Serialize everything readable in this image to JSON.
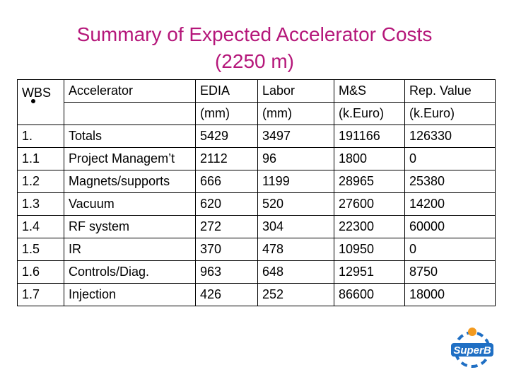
{
  "title": {
    "line1": "Summary of Expected Accelerator Costs",
    "line2": "(2250 m)"
  },
  "table": {
    "header1": [
      "WBS",
      "Accelerator",
      "EDIA",
      "Labor",
      "M&S",
      "Rep. Value"
    ],
    "header2": [
      "",
      "",
      "(mm)",
      "(mm)",
      "(k.Euro)",
      "(k.Euro)"
    ],
    "rows": [
      [
        "1.",
        "Totals",
        "5429",
        "3497",
        "191166",
        "126330"
      ],
      [
        "1.1",
        "Project Managem’t",
        "2112",
        "96",
        "1800",
        "0"
      ],
      [
        "1.2",
        "Magnets/supports",
        "666",
        "1199",
        "28965",
        "25380"
      ],
      [
        "1.3",
        "Vacuum",
        "620",
        "520",
        "27600",
        "14200"
      ],
      [
        "1.4",
        "RF system",
        "272",
        "304",
        "22300",
        "60000"
      ],
      [
        "1.5",
        "IR",
        "370",
        "478",
        "10950",
        "0"
      ],
      [
        "1.6",
        "Controls/Diag.",
        "963",
        "648",
        "12951",
        "8750"
      ],
      [
        "1.7",
        "Injection",
        "426",
        "252",
        "86600",
        "18000"
      ]
    ]
  },
  "logo": {
    "text": "SuperB",
    "colors": {
      "blue": "#1f6fc4",
      "orange": "#f39a1f",
      "text": "#ffffff"
    }
  },
  "colors": {
    "title": "#b5177a"
  }
}
